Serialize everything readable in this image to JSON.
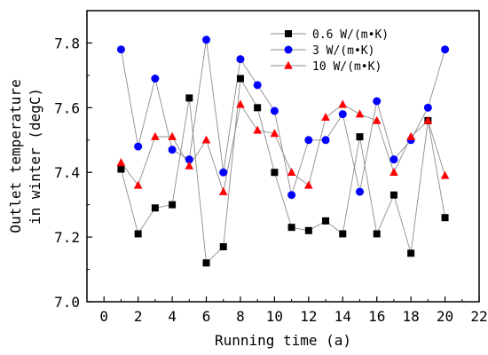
{
  "chart_data": {
    "type": "line",
    "title": "",
    "xlabel": "Running time (a)",
    "ylabel_lines": [
      "Outlet temperature",
      "in winter (degC)"
    ],
    "xlim": [
      -1,
      22
    ],
    "ylim": [
      7.0,
      7.9
    ],
    "xticks": [
      0,
      2,
      4,
      6,
      8,
      10,
      12,
      14,
      16,
      18,
      20,
      22
    ],
    "yticks": [
      7.0,
      7.2,
      7.4,
      7.6,
      7.8
    ],
    "ytick_labels": [
      "7.0",
      "7.2",
      "7.4",
      "7.6",
      "7.8"
    ],
    "grid": false,
    "legend_position": "top-right",
    "x": [
      1,
      2,
      3,
      4,
      5,
      6,
      7,
      8,
      9,
      10,
      11,
      12,
      13,
      14,
      15,
      16,
      17,
      18,
      19,
      20
    ],
    "series": [
      {
        "name": "0.6 W/(m•K)",
        "marker": "square",
        "color": "#000000",
        "values": [
          7.41,
          7.21,
          7.29,
          7.3,
          7.63,
          7.12,
          7.17,
          7.69,
          7.6,
          7.4,
          7.23,
          7.22,
          7.25,
          7.21,
          7.51,
          7.21,
          7.33,
          7.15,
          7.56,
          7.26
        ]
      },
      {
        "name": "3 W/(m•K)",
        "marker": "circle",
        "color": "#0000ff",
        "values": [
          7.78,
          7.48,
          7.69,
          7.47,
          7.44,
          7.81,
          7.4,
          7.75,
          7.67,
          7.59,
          7.33,
          7.5,
          7.5,
          7.58,
          7.34,
          7.62,
          7.44,
          7.5,
          7.6,
          7.78
        ]
      },
      {
        "name": "10 W/(m•K)",
        "marker": "triangle",
        "color": "#ff0000",
        "values": [
          7.43,
          7.36,
          7.51,
          7.51,
          7.42,
          7.5,
          7.34,
          7.61,
          7.53,
          7.52,
          7.4,
          7.36,
          7.57,
          7.61,
          7.58,
          7.56,
          7.4,
          7.51,
          7.56,
          7.39
        ]
      }
    ]
  }
}
